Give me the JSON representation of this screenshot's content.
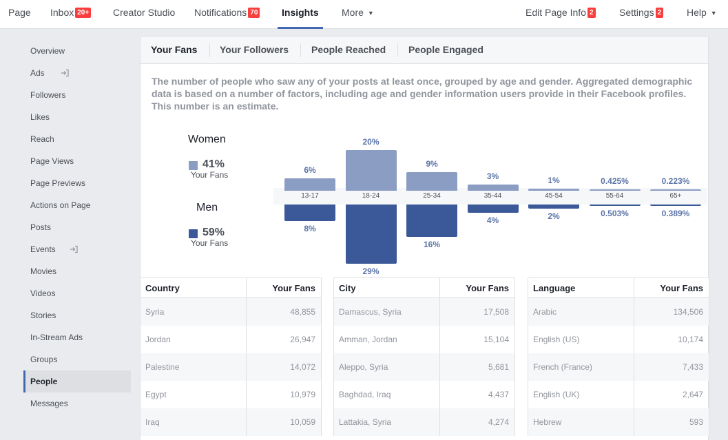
{
  "colors": {
    "women": "#8b9dc3",
    "men": "#3b5998",
    "accent": "#4267b2",
    "badge": "#fa3e3e"
  },
  "topnav": {
    "page": "Page",
    "inbox": {
      "label": "Inbox",
      "badge": "20+"
    },
    "creator_studio": "Creator Studio",
    "notifications": {
      "label": "Notifications",
      "badge": "70"
    },
    "insights": "Insights",
    "more": "More",
    "edit_page_info": {
      "label": "Edit Page Info",
      "badge": "2"
    },
    "settings": {
      "label": "Settings",
      "badge": "2"
    },
    "help": "Help"
  },
  "sidebar": {
    "items": [
      "Overview",
      "Ads",
      "Followers",
      "Likes",
      "Reach",
      "Page Views",
      "Page Previews",
      "Actions on Page",
      "Posts",
      "Events",
      "Movies",
      "Videos",
      "Stories",
      "In-Stream Ads",
      "Groups",
      "People",
      "Messages"
    ],
    "active": "People"
  },
  "tabs": [
    "Your Fans",
    "Your Followers",
    "People Reached",
    "People Engaged"
  ],
  "description": "The number of people who saw any of your posts at least once, grouped by age and gender. Aggregated demographic data is based on a number of factors, including age and gender information users provide in their Facebook profiles. This number is an estimate.",
  "legend": {
    "women": {
      "title": "Women",
      "pct": "41%",
      "sub": "Your Fans"
    },
    "men": {
      "title": "Men",
      "pct": "59%",
      "sub": "Your Fans"
    }
  },
  "chart_data": {
    "type": "bar",
    "categories": [
      "13-17",
      "18-24",
      "25-34",
      "35-44",
      "45-54",
      "55-64",
      "65+"
    ],
    "series": [
      {
        "name": "Women",
        "values": [
          6,
          20,
          9,
          3,
          1,
          0.425,
          0.223
        ],
        "labels": [
          "6%",
          "20%",
          "9%",
          "3%",
          "1%",
          "0.425%",
          "0.223%"
        ]
      },
      {
        "name": "Men",
        "values": [
          8,
          29,
          16,
          4,
          2,
          0.503,
          0.389
        ],
        "labels": [
          "8%",
          "29%",
          "16%",
          "4%",
          "2%",
          "0.503%",
          "0.389%"
        ]
      }
    ]
  },
  "tables": [
    {
      "headers": [
        "Country",
        "Your Fans"
      ],
      "rows": [
        [
          "Syria",
          "48,855"
        ],
        [
          "Jordan",
          "26,947"
        ],
        [
          "Palestine",
          "14,072"
        ],
        [
          "Egypt",
          "10,979"
        ],
        [
          "Iraq",
          "10,059"
        ]
      ]
    },
    {
      "headers": [
        "City",
        "Your Fans"
      ],
      "rows": [
        [
          "Damascus, Syria",
          "17,508"
        ],
        [
          "Amman, Jordan",
          "15,104"
        ],
        [
          "Aleppo, Syria",
          "5,681"
        ],
        [
          "Baghdad, Iraq",
          "4,437"
        ],
        [
          "Lattakia, Syria",
          "4,274"
        ]
      ]
    },
    {
      "headers": [
        "Language",
        "Your Fans"
      ],
      "rows": [
        [
          "Arabic",
          "134,506"
        ],
        [
          "English (US)",
          "10,174"
        ],
        [
          "French (France)",
          "7,433"
        ],
        [
          "English (UK)",
          "2,647"
        ],
        [
          "Hebrew",
          "593"
        ]
      ]
    }
  ]
}
